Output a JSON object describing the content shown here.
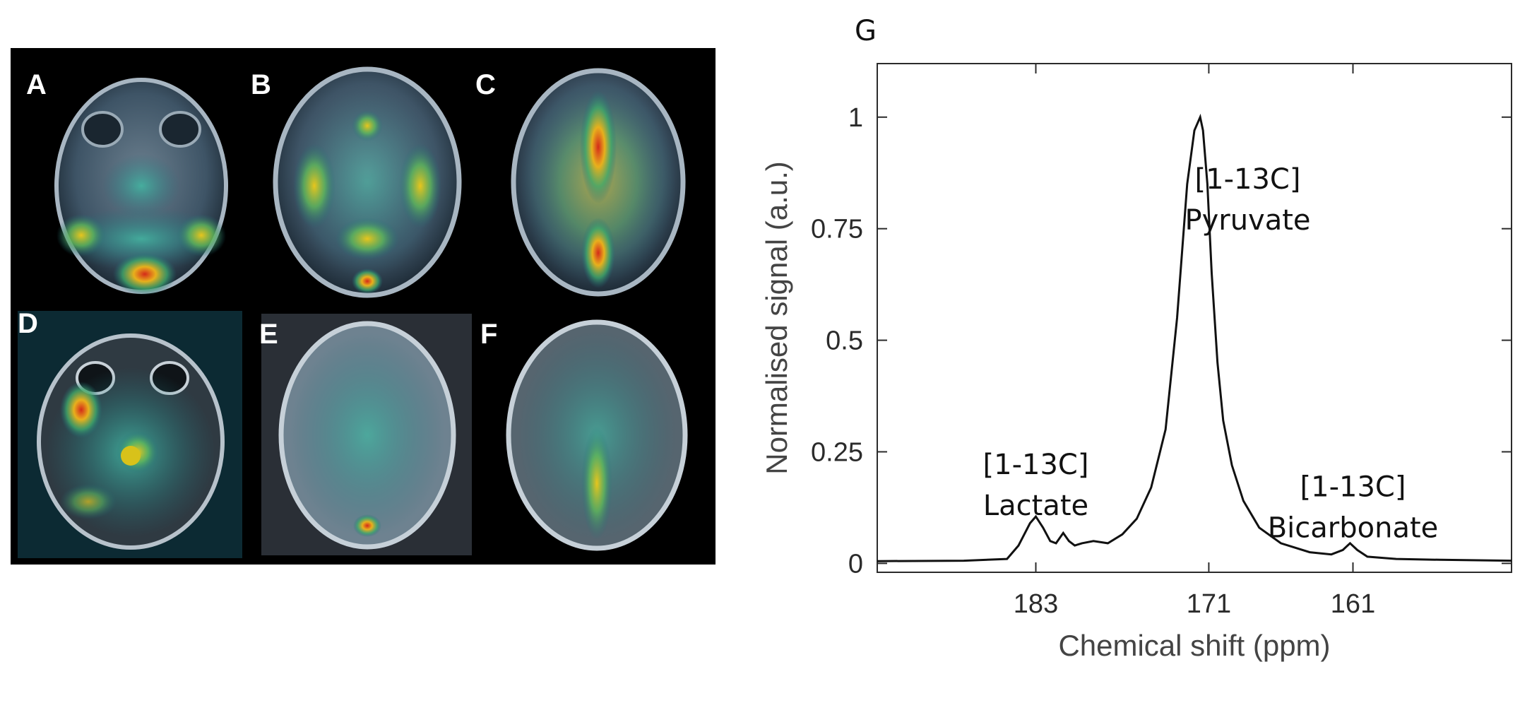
{
  "panels": [
    "A",
    "B",
    "C",
    "D",
    "E",
    "F"
  ],
  "chart_data": {
    "type": "line",
    "panel_label": "G",
    "title": "",
    "xlabel": "Chemical shift (ppm)",
    "ylabel": "Normalised signal (a.u.)",
    "x_reversed": true,
    "xlim": [
      194,
      150
    ],
    "ylim": [
      -0.02,
      1.12
    ],
    "xticks": [
      183,
      171,
      161
    ],
    "yticks": [
      0,
      0.25,
      0.5,
      0.75,
      1
    ],
    "ytick_labels": [
      "0",
      "0.25",
      "0.5",
      "0.75",
      "1"
    ],
    "grid": false,
    "series": [
      {
        "x": [
          194,
          188,
          185,
          184.2,
          183.4,
          183,
          182.5,
          182,
          181.6,
          181.1,
          180.7,
          180.3,
          179.8,
          179,
          178,
          177,
          176,
          175,
          174,
          173.2,
          172.5,
          172,
          171.6,
          171.4,
          171.1,
          170.8,
          170.4,
          170,
          169.4,
          168.6,
          167.5,
          166,
          164,
          162.5,
          161.7,
          161.2,
          160.7,
          160,
          158,
          155,
          150
        ],
        "y": [
          0.005,
          0.006,
          0.01,
          0.04,
          0.09,
          0.105,
          0.08,
          0.05,
          0.045,
          0.068,
          0.05,
          0.04,
          0.045,
          0.05,
          0.045,
          0.065,
          0.1,
          0.17,
          0.3,
          0.55,
          0.85,
          0.97,
          1.0,
          0.97,
          0.85,
          0.65,
          0.45,
          0.32,
          0.22,
          0.14,
          0.08,
          0.045,
          0.025,
          0.02,
          0.03,
          0.045,
          0.03,
          0.015,
          0.01,
          0.008,
          0.006
        ]
      }
    ],
    "annotations": [
      {
        "lines": [
          "[1-13C]",
          "Lactate"
        ],
        "x": 183,
        "y": 0.2
      },
      {
        "lines": [
          "[1-13C]",
          "Pyruvate"
        ],
        "x": 168.3,
        "y": 0.84
      },
      {
        "lines": [
          "[1-13C]",
          "Bicarbonate"
        ],
        "x": 161,
        "y": 0.15
      }
    ]
  }
}
